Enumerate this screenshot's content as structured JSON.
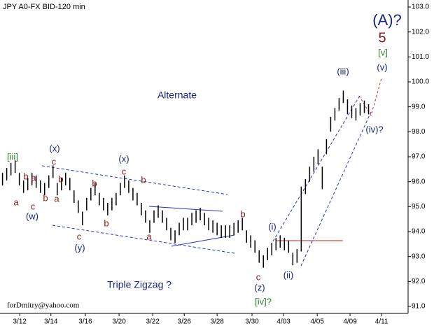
{
  "chart_data": {
    "type": "ohlc",
    "title": "JPY A0-FX BID-120 min",
    "watermark": "forDmitry@yahoo.com",
    "color": "#000000",
    "high": [
      96.35,
      96.55,
      96.75,
      96.85,
      96.35,
      96.05,
      96.15,
      96.35,
      96.25,
      96.05,
      95.95,
      96.25,
      96.65,
      95.95,
      96.15,
      96.35,
      96.15,
      95.65,
      95.25,
      94.8,
      95.35,
      95.75,
      95.95,
      95.55,
      95.35,
      95.15,
      95.35,
      95.55,
      95.95,
      96.25,
      96.05,
      95.75,
      95.55,
      95.15,
      94.85,
      94.45,
      94.85,
      95.05,
      94.85,
      94.55,
      94.15,
      94.05,
      94.35,
      94.55,
      94.55,
      94.75,
      94.85,
      94.95,
      94.75,
      94.55,
      94.45,
      94.35,
      94.25,
      94.25,
      94.25,
      94.35,
      94.45,
      94.55,
      94.05,
      93.85,
      93.65,
      93.25,
      93.05,
      93.35,
      93.55,
      93.75,
      93.85,
      93.75,
      93.65,
      93.15,
      93.3,
      95.8,
      96.1,
      96.6,
      97.0,
      97.3,
      96.6,
      97.7,
      98.6,
      98.95,
      99.35,
      99.65,
      99.3,
      99.05,
      98.95,
      99.15,
      99.25,
      99.1
    ],
    "low": [
      95.85,
      96.05,
      96.25,
      96.35,
      95.85,
      95.55,
      95.65,
      95.85,
      95.75,
      95.55,
      95.45,
      95.75,
      96.15,
      95.45,
      95.65,
      95.85,
      95.65,
      95.15,
      94.75,
      94.25,
      94.85,
      95.25,
      95.45,
      95.05,
      94.85,
      94.65,
      94.85,
      95.05,
      95.45,
      95.75,
      95.55,
      95.25,
      95.05,
      94.65,
      94.35,
      93.95,
      94.35,
      94.55,
      94.35,
      94.05,
      93.65,
      93.55,
      93.85,
      94.05,
      94.05,
      94.25,
      94.35,
      94.45,
      94.25,
      94.05,
      93.95,
      93.85,
      93.75,
      93.75,
      93.75,
      93.85,
      93.95,
      94.05,
      93.55,
      93.35,
      93.15,
      92.75,
      92.55,
      92.85,
      93.05,
      93.25,
      93.35,
      93.25,
      93.15,
      92.65,
      92.75,
      93.2,
      95.5,
      96.0,
      96.4,
      96.7,
      95.7,
      97.1,
      98.0,
      98.45,
      98.85,
      99.15,
      98.7,
      98.55,
      98.45,
      98.65,
      98.75,
      98.7
    ],
    "xlim": [
      0,
      97
    ],
    "ylim": [
      90.72,
      103.28
    ],
    "xticks": [
      {
        "value": 4.7,
        "label": "3/12"
      },
      {
        "value": 12.1,
        "label": "3/14"
      },
      {
        "value": 20.3,
        "label": "3/16"
      },
      {
        "value": 28.3,
        "label": "3/20"
      },
      {
        "value": 36.3,
        "label": "3/22"
      },
      {
        "value": 43.8,
        "label": "3/26"
      },
      {
        "value": 51.6,
        "label": "3/28"
      },
      {
        "value": 59.9,
        "label": "3/30"
      },
      {
        "value": 67.4,
        "label": "4/03"
      },
      {
        "value": 75.4,
        "label": "4/05"
      },
      {
        "value": 83.2,
        "label": "4/09"
      },
      {
        "value": 90.7,
        "label": "4/11"
      }
    ],
    "yticks": [
      {
        "value": 91,
        "label": "91.0"
      },
      {
        "value": 92,
        "label": "92.0"
      },
      {
        "value": 93,
        "label": "93.0"
      },
      {
        "value": 94,
        "label": "94.0"
      },
      {
        "value": 95,
        "label": "95.0"
      },
      {
        "value": 96,
        "label": "96.0"
      },
      {
        "value": 97,
        "label": "97.0"
      },
      {
        "value": 98,
        "label": "98.0"
      },
      {
        "value": 99,
        "label": "99.0"
      },
      {
        "value": 100,
        "label": "100.0"
      },
      {
        "value": 101,
        "label": "101.0"
      },
      {
        "value": 102,
        "label": "102.0"
      },
      {
        "value": 103,
        "label": "103.0"
      }
    ],
    "annotations": [
      {
        "text": "[iii]",
        "color": "#2e7d32"
      },
      {
        "text": "(x)",
        "color": "#1a237e"
      },
      {
        "text": "c",
        "color": "#8b1a1a"
      },
      {
        "text": "b",
        "color": "#8b1a1a"
      },
      {
        "text": "a",
        "color": "#8b1a1a"
      },
      {
        "text": "b",
        "color": "#8b1a1a"
      },
      {
        "text": "a",
        "color": "#8b1a1a"
      },
      {
        "text": "c",
        "color": "#8b1a1a"
      },
      {
        "text": "b",
        "color": "#8b1a1a"
      },
      {
        "text": "a",
        "color": "#8b1a1a"
      },
      {
        "text": "(w)",
        "color": "#1a237e"
      },
      {
        "text": "c",
        "color": "#8b1a1a"
      },
      {
        "text": "(y)",
        "color": "#1a237e"
      },
      {
        "text": "b",
        "color": "#8b1a1a"
      },
      {
        "text": "b",
        "color": "#8b1a1a"
      },
      {
        "text": "(x)",
        "color": "#1a237e"
      },
      {
        "text": "c",
        "color": "#8b1a1a"
      },
      {
        "text": "b",
        "color": "#8b1a1a"
      },
      {
        "text": "a",
        "color": "#8b1a1a"
      },
      {
        "text": "b",
        "color": "#8b1a1a"
      },
      {
        "text": "c",
        "color": "#8b1a1a"
      },
      {
        "text": "(z)",
        "color": "#1a237e"
      },
      {
        "text": "[iv]?",
        "color": "#2e7d32"
      },
      {
        "text": "(i)",
        "color": "#1a237e"
      },
      {
        "text": "(ii)",
        "color": "#1a237e"
      },
      {
        "text": "(iii)",
        "color": "#1a237e"
      },
      {
        "text": "(iv)?",
        "color": "#1a237e"
      },
      {
        "text": "(v)",
        "color": "#1a237e"
      },
      {
        "text": "[v]",
        "color": "#2e7d32"
      },
      {
        "text": "5",
        "color": "#8b1a1a"
      },
      {
        "text": "(A)?",
        "color": "#1a237e"
      },
      {
        "text": "Alternate",
        "color": "#1a237e"
      },
      {
        "text": "Triple Zigzag ?",
        "color": "#1a237e"
      }
    ]
  }
}
